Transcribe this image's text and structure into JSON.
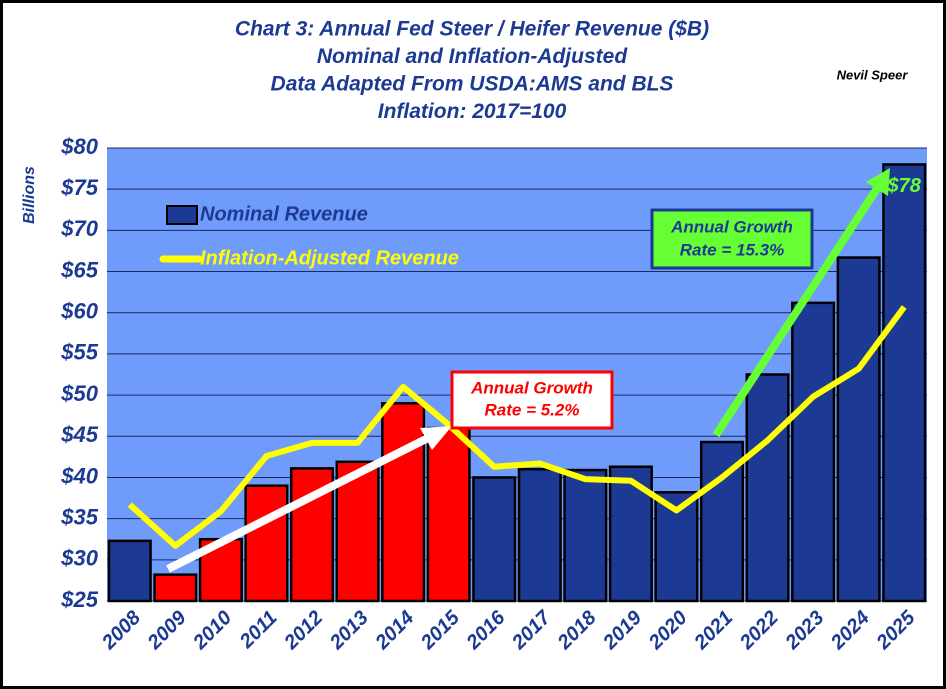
{
  "chart_data": {
    "type": "bar_line",
    "title_lines": [
      "Chart 3: Annual Fed Steer / Heifer Revenue ($B)",
      "Nominal and Inflation-Adjusted",
      "Data Adapted From USDA:AMS and BLS",
      "Inflation:  2017=100"
    ],
    "author": "Nevil Speer",
    "y_label": "Billions",
    "categories": [
      "2008",
      "2009",
      "2010",
      "2011",
      "2012",
      "2013",
      "2014",
      "2015",
      "2016",
      "2017",
      "2018",
      "2019",
      "2020",
      "2021",
      "2022",
      "2023",
      "2024",
      "2025"
    ],
    "series": [
      {
        "name": "Nominal Revenue",
        "type": "bar",
        "color": "#1c3a94",
        "bar_colors": [
          "#1c3a94",
          "#ff0000",
          "#ff0000",
          "#ff0000",
          "#ff0000",
          "#ff0000",
          "#ff0000",
          "#ff0000",
          "#1c3a94",
          "#1c3a94",
          "#1c3a94",
          "#1c3a94",
          "#1c3a94",
          "#1c3a94",
          "#1c3a94",
          "#1c3a94",
          "#1c3a94",
          "#1c3a94"
        ],
        "values": [
          32.3,
          28.2,
          32.5,
          39.0,
          41.1,
          41.9,
          49.0,
          46.0,
          40.0,
          41.0,
          40.9,
          41.3,
          38.2,
          44.3,
          52.5,
          61.2,
          66.7,
          78
        ],
        "value_labels": [
          null,
          null,
          null,
          null,
          null,
          null,
          null,
          null,
          null,
          null,
          null,
          null,
          null,
          null,
          null,
          null,
          null,
          "$78"
        ]
      },
      {
        "name": "Inflation-Adjusted Revenue",
        "type": "line",
        "color": "#ffff00",
        "values": [
          36.7,
          31.7,
          35.9,
          42.6,
          44.2,
          44.2,
          51.0,
          46.4,
          41.3,
          41.7,
          39.8,
          39.6,
          36.0,
          40.0,
          44.5,
          49.8,
          53.2,
          60.7
        ]
      }
    ],
    "annotations": [
      {
        "lines": [
          "Annual Growth",
          "Rate = 5.2%"
        ]
      },
      {
        "lines": [
          "Annual Growth",
          "Rate = 15.3%"
        ]
      }
    ],
    "ylim": [
      25,
      80
    ],
    "yticks": [
      {
        "value": 25,
        "label": "$25"
      },
      {
        "value": 30,
        "label": "$30"
      },
      {
        "value": 35,
        "label": "$35"
      },
      {
        "value": 40,
        "label": "$40"
      },
      {
        "value": 45,
        "label": "$45"
      },
      {
        "value": 50,
        "label": "$50"
      },
      {
        "value": 55,
        "label": "$55"
      },
      {
        "value": 60,
        "label": "$60"
      },
      {
        "value": 65,
        "label": "$65"
      },
      {
        "value": 70,
        "label": "$70"
      },
      {
        "value": 75,
        "label": "$75"
      },
      {
        "value": 80,
        "label": "$80"
      }
    ],
    "grid": true,
    "legend": "upper left"
  }
}
